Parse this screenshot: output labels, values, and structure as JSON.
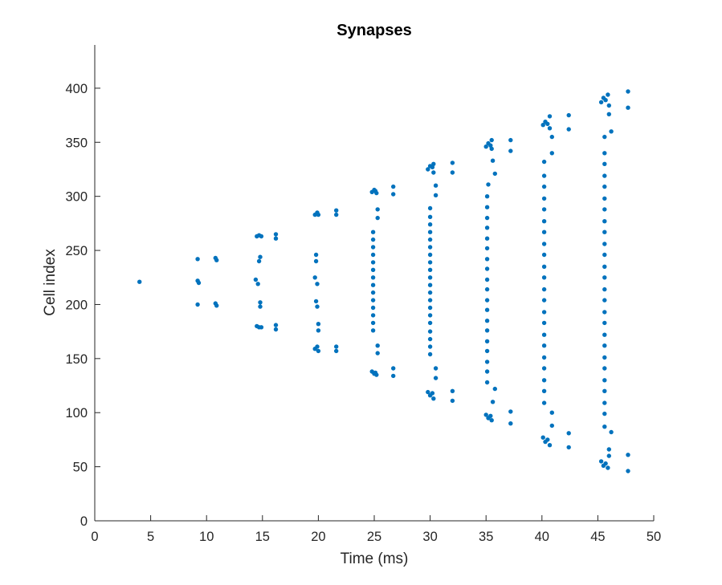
{
  "chart_data": {
    "type": "scatter",
    "title": "Synapses",
    "xlabel": "Time (ms)",
    "ylabel": "Cell index",
    "xlim": [
      0,
      50
    ],
    "ylim": [
      0,
      440
    ],
    "xticks": [
      0,
      5,
      10,
      15,
      20,
      25,
      30,
      35,
      40,
      45,
      50
    ],
    "yticks": [
      0,
      50,
      100,
      150,
      200,
      250,
      300,
      350,
      400
    ],
    "grid": false,
    "marker_color": "#0072BD",
    "points": [
      [
        4.0,
        221
      ],
      [
        9.2,
        242
      ],
      [
        9.2,
        222
      ],
      [
        9.3,
        220
      ],
      [
        9.2,
        200
      ],
      [
        10.8,
        243
      ],
      [
        10.9,
        241
      ],
      [
        10.8,
        201
      ],
      [
        10.9,
        199
      ],
      [
        14.5,
        263
      ],
      [
        14.7,
        264
      ],
      [
        14.9,
        263
      ],
      [
        14.8,
        244
      ],
      [
        14.7,
        240
      ],
      [
        14.4,
        223
      ],
      [
        14.6,
        219
      ],
      [
        14.8,
        202
      ],
      [
        14.8,
        198
      ],
      [
        14.5,
        180
      ],
      [
        14.7,
        179
      ],
      [
        14.9,
        179
      ],
      [
        16.2,
        265
      ],
      [
        16.2,
        261
      ],
      [
        16.2,
        181
      ],
      [
        16.2,
        177
      ],
      [
        19.7,
        283
      ],
      [
        19.9,
        285
      ],
      [
        20.0,
        283
      ],
      [
        19.8,
        246
      ],
      [
        19.8,
        240
      ],
      [
        19.7,
        225
      ],
      [
        19.9,
        219
      ],
      [
        19.8,
        203
      ],
      [
        19.9,
        198
      ],
      [
        20.0,
        182
      ],
      [
        20.0,
        176
      ],
      [
        19.7,
        159
      ],
      [
        19.9,
        161
      ],
      [
        20.0,
        157
      ],
      [
        21.6,
        287
      ],
      [
        21.6,
        283
      ],
      [
        21.6,
        161
      ],
      [
        21.6,
        157
      ],
      [
        24.8,
        304
      ],
      [
        25.0,
        306
      ],
      [
        25.1,
        305
      ],
      [
        25.2,
        303
      ],
      [
        25.3,
        288
      ],
      [
        25.3,
        280
      ],
      [
        24.9,
        267
      ],
      [
        24.9,
        260
      ],
      [
        24.9,
        253
      ],
      [
        24.9,
        246
      ],
      [
        24.9,
        239
      ],
      [
        24.9,
        232
      ],
      [
        24.9,
        225
      ],
      [
        24.9,
        218
      ],
      [
        24.9,
        211
      ],
      [
        24.9,
        204
      ],
      [
        24.9,
        197
      ],
      [
        24.9,
        190
      ],
      [
        24.9,
        183
      ],
      [
        24.9,
        176
      ],
      [
        25.3,
        162
      ],
      [
        25.3,
        155
      ],
      [
        24.8,
        138
      ],
      [
        25.0,
        136
      ],
      [
        25.1,
        137
      ],
      [
        25.2,
        135
      ],
      [
        26.7,
        309
      ],
      [
        26.7,
        302
      ],
      [
        26.7,
        141
      ],
      [
        26.7,
        134
      ],
      [
        29.8,
        325
      ],
      [
        30.0,
        328
      ],
      [
        30.2,
        327
      ],
      [
        30.3,
        330
      ],
      [
        30.3,
        322
      ],
      [
        30.5,
        310
      ],
      [
        30.5,
        301
      ],
      [
        30.0,
        289
      ],
      [
        30.0,
        281
      ],
      [
        30.0,
        274
      ],
      [
        30.0,
        267
      ],
      [
        30.0,
        260
      ],
      [
        30.0,
        253
      ],
      [
        30.0,
        246
      ],
      [
        30.0,
        239
      ],
      [
        30.0,
        232
      ],
      [
        30.0,
        225
      ],
      [
        30.0,
        218
      ],
      [
        30.0,
        211
      ],
      [
        30.0,
        204
      ],
      [
        30.0,
        197
      ],
      [
        30.0,
        190
      ],
      [
        30.0,
        183
      ],
      [
        30.0,
        175
      ],
      [
        30.0,
        168
      ],
      [
        30.0,
        161
      ],
      [
        30.0,
        154
      ],
      [
        30.5,
        141
      ],
      [
        30.5,
        132
      ],
      [
        29.8,
        119
      ],
      [
        30.0,
        116
      ],
      [
        30.2,
        118
      ],
      [
        30.3,
        113
      ],
      [
        32.0,
        331
      ],
      [
        32.0,
        322
      ],
      [
        32.0,
        120
      ],
      [
        32.0,
        111
      ],
      [
        35.0,
        346
      ],
      [
        35.2,
        349
      ],
      [
        35.4,
        347
      ],
      [
        35.5,
        352
      ],
      [
        35.5,
        344
      ],
      [
        35.6,
        333
      ],
      [
        35.8,
        321
      ],
      [
        35.2,
        311
      ],
      [
        35.1,
        300
      ],
      [
        35.1,
        290
      ],
      [
        35.1,
        280
      ],
      [
        35.1,
        271
      ],
      [
        35.1,
        261
      ],
      [
        35.1,
        252
      ],
      [
        35.1,
        242
      ],
      [
        35.1,
        233
      ],
      [
        35.1,
        223
      ],
      [
        35.1,
        214
      ],
      [
        35.1,
        204
      ],
      [
        35.1,
        195
      ],
      [
        35.1,
        185
      ],
      [
        35.1,
        176
      ],
      [
        35.1,
        166
      ],
      [
        35.1,
        157
      ],
      [
        35.1,
        147
      ],
      [
        35.1,
        138
      ],
      [
        35.1,
        128
      ],
      [
        35.8,
        122
      ],
      [
        35.6,
        110
      ],
      [
        35.0,
        98
      ],
      [
        35.2,
        95
      ],
      [
        35.4,
        97
      ],
      [
        35.5,
        93
      ],
      [
        37.2,
        352
      ],
      [
        37.2,
        342
      ],
      [
        37.2,
        101
      ],
      [
        37.2,
        90
      ],
      [
        40.1,
        366
      ],
      [
        40.3,
        369
      ],
      [
        40.5,
        367
      ],
      [
        40.7,
        374
      ],
      [
        40.7,
        363
      ],
      [
        40.9,
        355
      ],
      [
        40.9,
        340
      ],
      [
        40.2,
        332
      ],
      [
        40.2,
        319
      ],
      [
        40.2,
        309
      ],
      [
        40.2,
        298
      ],
      [
        40.2,
        288
      ],
      [
        40.2,
        277
      ],
      [
        40.2,
        267
      ],
      [
        40.2,
        256
      ],
      [
        40.2,
        246
      ],
      [
        40.2,
        235
      ],
      [
        40.2,
        225
      ],
      [
        40.2,
        214
      ],
      [
        40.2,
        204
      ],
      [
        40.2,
        193
      ],
      [
        40.2,
        183
      ],
      [
        40.2,
        172
      ],
      [
        40.2,
        162
      ],
      [
        40.2,
        151
      ],
      [
        40.2,
        141
      ],
      [
        40.2,
        130
      ],
      [
        40.2,
        120
      ],
      [
        40.2,
        109
      ],
      [
        40.9,
        100
      ],
      [
        40.9,
        88
      ],
      [
        40.1,
        77
      ],
      [
        40.3,
        73
      ],
      [
        40.5,
        75
      ],
      [
        40.7,
        70
      ],
      [
        42.4,
        375
      ],
      [
        42.4,
        362
      ],
      [
        42.4,
        81
      ],
      [
        42.4,
        68
      ],
      [
        45.3,
        387
      ],
      [
        45.5,
        391
      ],
      [
        45.7,
        389
      ],
      [
        45.9,
        394
      ],
      [
        46.0,
        384
      ],
      [
        46.0,
        376
      ],
      [
        46.2,
        360
      ],
      [
        45.6,
        355
      ],
      [
        45.6,
        340
      ],
      [
        45.6,
        330
      ],
      [
        45.6,
        319
      ],
      [
        45.6,
        309
      ],
      [
        45.6,
        298
      ],
      [
        45.6,
        288
      ],
      [
        45.6,
        277
      ],
      [
        45.6,
        267
      ],
      [
        45.6,
        256
      ],
      [
        45.6,
        246
      ],
      [
        45.6,
        235
      ],
      [
        45.6,
        225
      ],
      [
        45.6,
        214
      ],
      [
        45.6,
        204
      ],
      [
        45.6,
        193
      ],
      [
        45.6,
        183
      ],
      [
        45.6,
        172
      ],
      [
        45.6,
        162
      ],
      [
        45.6,
        151
      ],
      [
        45.6,
        141
      ],
      [
        45.6,
        130
      ],
      [
        45.6,
        120
      ],
      [
        45.6,
        109
      ],
      [
        45.6,
        99
      ],
      [
        45.6,
        87
      ],
      [
        46.2,
        82
      ],
      [
        46.0,
        66
      ],
      [
        45.3,
        55
      ],
      [
        45.5,
        51
      ],
      [
        45.7,
        53
      ],
      [
        45.9,
        49
      ],
      [
        46.0,
        60
      ],
      [
        47.7,
        397
      ],
      [
        47.7,
        382
      ],
      [
        47.7,
        61
      ],
      [
        47.7,
        46
      ]
    ]
  }
}
